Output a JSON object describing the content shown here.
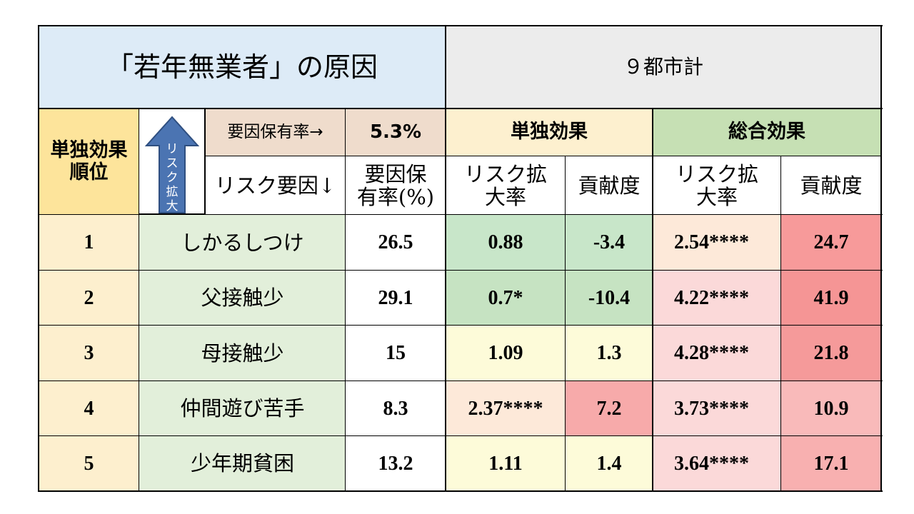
{
  "title": "「若年無業者」の原因",
  "city": "９都市計",
  "rank_header": "単独効果\n順位",
  "arrow_text": "リスク拡大",
  "factor_rate_label": "要因保有率→",
  "factor_rate_value": "5.3%",
  "risk_factor_label": "リスク要因↓",
  "rate_pct_label": "要因保\n有率(%)",
  "single_effect_label": "単独効果",
  "total_effect_label": "総合効果",
  "risk_ratio_label": "リスク拡\n大率",
  "contribution_label": "貢献度",
  "colors": {
    "title_bg": "#ddebf7",
    "city_bg": "#ececec",
    "rank_bg": "#fde49b",
    "rank_row_bg": "#fdefce",
    "factor_name_bg": "#e2efda",
    "rate_header_bg": "#efdccc",
    "single_header_bg": "#fdf0cf",
    "total_header_bg": "#c6e0b4",
    "arrow_fill": "#4b74b2"
  },
  "rows": [
    {
      "rank": "1",
      "factor": "しかるしつけ",
      "rate": "26.5",
      "s_ratio": "0.88",
      "s_contrib": "-3.4",
      "t_ratio": "2.54****",
      "t_contrib": "24.7",
      "bg": {
        "s_ratio": "#c8e6c9",
        "s_contrib": "#c8e6c9",
        "t_ratio": "#fde9d9",
        "t_contrib": "#f79a9a"
      }
    },
    {
      "rank": "2",
      "factor": "父接触少",
      "rate": "29.1",
      "s_ratio": "0.7*",
      "s_contrib": "-10.4",
      "t_ratio": "4.22****",
      "t_contrib": "41.9",
      "bg": {
        "s_ratio": "#c6e3c2",
        "s_contrib": "#c6e3c2",
        "t_ratio": "#fbd9d9",
        "t_contrib": "#f59595"
      }
    },
    {
      "rank": "3",
      "factor": "母接触少",
      "rate": "15",
      "s_ratio": "1.09",
      "s_contrib": "1.3",
      "t_ratio": "4.28****",
      "t_contrib": "21.8",
      "bg": {
        "s_ratio": "#fdfbd9",
        "s_contrib": "#fdfbd9",
        "t_ratio": "#fbd9d9",
        "t_contrib": "#f59a9a"
      }
    },
    {
      "rank": "4",
      "factor": "仲間遊び苦手",
      "rate": "8.3",
      "s_ratio": "2.37****",
      "s_contrib": "7.2",
      "t_ratio": "3.73****",
      "t_contrib": "10.9",
      "bg": {
        "s_ratio": "#fde9d9",
        "s_contrib": "#f7aaaa",
        "t_ratio": "#fbd9d9",
        "t_contrib": "#f9baba"
      }
    },
    {
      "rank": "5",
      "factor": "少年期貧困",
      "rate": "13.2",
      "s_ratio": "1.11",
      "s_contrib": "1.4",
      "t_ratio": "3.64****",
      "t_contrib": "17.1",
      "bg": {
        "s_ratio": "#fdfbd9",
        "s_contrib": "#fdfbd9",
        "t_ratio": "#fbd9d9",
        "t_contrib": "#f8b0b0"
      }
    }
  ]
}
